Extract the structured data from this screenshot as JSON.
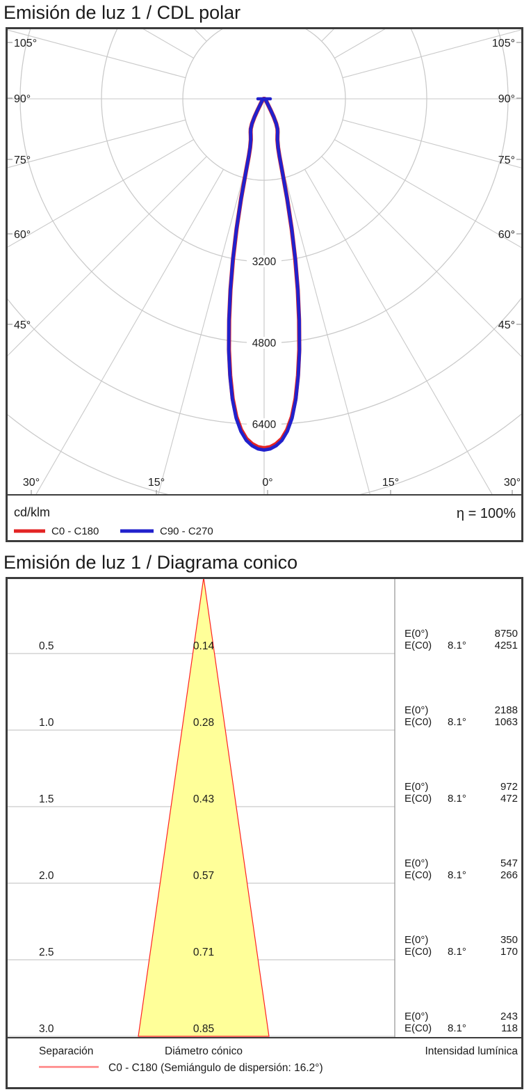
{
  "page": {
    "polar_title": "Emisión de luz 1 / CDL polar",
    "cone_title": "Emisión de luz 1 / Diagrama conico"
  },
  "chart_data": [
    {
      "type": "line",
      "subtype": "photometric-polar-intensity-diagram",
      "title": "Emisión de luz 1 / CDL polar",
      "unit_label": "cd/klm",
      "efficiency_label": "η = 100%",
      "gamma_axis": {
        "min_deg": -105,
        "max_deg": 105,
        "step_deg": 15,
        "zero_direction": "down"
      },
      "radial_axis": {
        "unit": "cd/klm",
        "grid_circles_cd": [
          1600,
          3200,
          4800,
          6400,
          8000
        ],
        "labeled_circles": [
          "3200",
          "4800",
          "6400"
        ]
      },
      "side_angle_labels": [
        "105°",
        "90°",
        "75°",
        "60°",
        "45°"
      ],
      "bottom_angle_labels": [
        "30°",
        "15°",
        "0°",
        "15°",
        "30°"
      ],
      "legend": [
        {
          "label": "C0 - C180",
          "color": "#e32424"
        },
        {
          "label": "C90 - C270",
          "color": "#2121cc"
        }
      ],
      "peak_intensity_cd_per_klm": 6900,
      "series": [
        {
          "name": "C0 - C180",
          "color": "#e32424",
          "points_gamma_deg_cd": [
            [
              0,
              6900
            ],
            [
              1,
              6880
            ],
            [
              2,
              6820
            ],
            [
              3,
              6720
            ],
            [
              4,
              6550
            ],
            [
              5,
              6300
            ],
            [
              6,
              5950
            ],
            [
              7,
              5500
            ],
            [
              8,
              5000
            ],
            [
              9,
              4420
            ],
            [
              10,
              3830
            ],
            [
              11,
              3230
            ],
            [
              12,
              2620
            ],
            [
              13,
              2020
            ],
            [
              14,
              1500
            ],
            [
              15,
              1170
            ],
            [
              16,
              1000
            ],
            [
              18,
              850
            ],
            [
              20,
              770
            ],
            [
              22,
              710
            ],
            [
              24,
              650
            ],
            [
              26,
              545
            ],
            [
              28,
              405
            ],
            [
              30,
              265
            ],
            [
              33,
              155
            ],
            [
              36,
              105
            ],
            [
              40,
              75
            ],
            [
              50,
              45
            ],
            [
              60,
              28
            ],
            [
              75,
              16
            ],
            [
              90,
              10
            ]
          ]
        },
        {
          "name": "C90 - C270",
          "color": "#2121cc",
          "points_gamma_deg_cd": [
            [
              0,
              6900
            ],
            [
              1,
              6880
            ],
            [
              2,
              6820
            ],
            [
              3,
              6720
            ],
            [
              4,
              6550
            ],
            [
              5,
              6300
            ],
            [
              6,
              5950
            ],
            [
              7,
              5500
            ],
            [
              8,
              5000
            ],
            [
              9,
              4420
            ],
            [
              10,
              3830
            ],
            [
              11,
              3230
            ],
            [
              12,
              2620
            ],
            [
              13,
              2020
            ],
            [
              14,
              1500
            ],
            [
              15,
              1170
            ],
            [
              16,
              1000
            ],
            [
              18,
              850
            ],
            [
              20,
              770
            ],
            [
              22,
              710
            ],
            [
              24,
              650
            ],
            [
              26,
              545
            ],
            [
              28,
              405
            ],
            [
              30,
              265
            ],
            [
              33,
              155
            ],
            [
              36,
              105
            ],
            [
              40,
              75
            ],
            [
              50,
              45
            ],
            [
              60,
              28
            ],
            [
              75,
              16
            ],
            [
              90,
              10
            ]
          ]
        }
      ],
      "grid_color": "#c9c9c9"
    },
    {
      "type": "area",
      "subtype": "cone-diagram",
      "title": "Emisión de luz 1 / Diagrama conico",
      "beam_half_angle_deg": 8.1,
      "columns": {
        "separation": "Separación",
        "diameter": "Diámetro cónico",
        "intensity": "Intensidad lumínica"
      },
      "e0_label": "E(0°)",
      "ec0_label": "E(C0)",
      "angle_label": "8.1°",
      "rows": [
        {
          "separation": "0.5",
          "cone_diameter": "0.14",
          "E0": "8750",
          "EC0": "4251"
        },
        {
          "separation": "1.0",
          "cone_diameter": "0.28",
          "E0": "2188",
          "EC0": "1063"
        },
        {
          "separation": "1.5",
          "cone_diameter": "0.43",
          "E0": "972",
          "EC0": "472"
        },
        {
          "separation": "2.0",
          "cone_diameter": "0.57",
          "E0": "547",
          "EC0": "266"
        },
        {
          "separation": "2.5",
          "cone_diameter": "0.71",
          "E0": "350",
          "EC0": "170"
        },
        {
          "separation": "3.0",
          "cone_diameter": "0.85",
          "E0": "243",
          "EC0": "118"
        }
      ],
      "legend_label": "C0 - C180 (Semiángulo de dispersión: 16.2°)",
      "colors": {
        "cone_fill": "#ffff99",
        "cone_stroke": "#ff2020",
        "legend_line": "#ff8080",
        "grid_color": "#c9c9c9"
      }
    }
  ]
}
